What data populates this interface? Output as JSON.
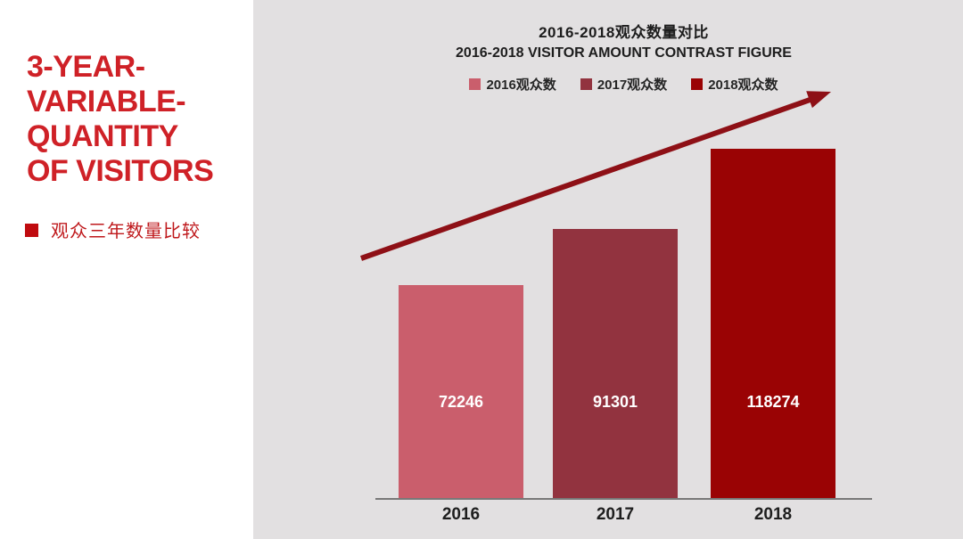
{
  "sidebar": {
    "title_lines": [
      "3-YEAR-",
      "VARIABLE-",
      "QUANTITY",
      "OF VISITORS"
    ],
    "bullet_label": "观众三年数量比较"
  },
  "chart": {
    "title_zh": "2016-2018观众数量对比",
    "title_en": "2016-2018 VISITOR AMOUNT CONTRAST FIGURE"
  },
  "chart_data": {
    "type": "bar",
    "title": "2016-2018观众数量对比",
    "subtitle": "2016-2018 VISITOR AMOUNT CONTRAST FIGURE",
    "categories": [
      "2016",
      "2017",
      "2018"
    ],
    "values": [
      72246,
      91301,
      118274
    ],
    "data_labels": [
      "72246",
      "91301",
      "118274"
    ],
    "legend_entries": [
      "2016观众数",
      "2017观众数",
      "2018观众数"
    ],
    "bar_colors": [
      "#ca5e6c",
      "#92333f",
      "#9a0304"
    ],
    "legend_position": "top",
    "grid": false,
    "xlabel": "",
    "ylabel": "",
    "ylim": [
      0,
      125000
    ],
    "annotations": [
      "upward trend arrow across bars"
    ]
  },
  "colors": {
    "sidebar_title": "#cf2127",
    "bullet_square": "#c00b0f",
    "bullet_text": "#bf191c",
    "panel_background": "#e2e0e1",
    "trend_arrow": "#8e1016",
    "axis_line": "#787878",
    "title_text": "#1d1d1d",
    "value_label_text": "#ffffff"
  }
}
